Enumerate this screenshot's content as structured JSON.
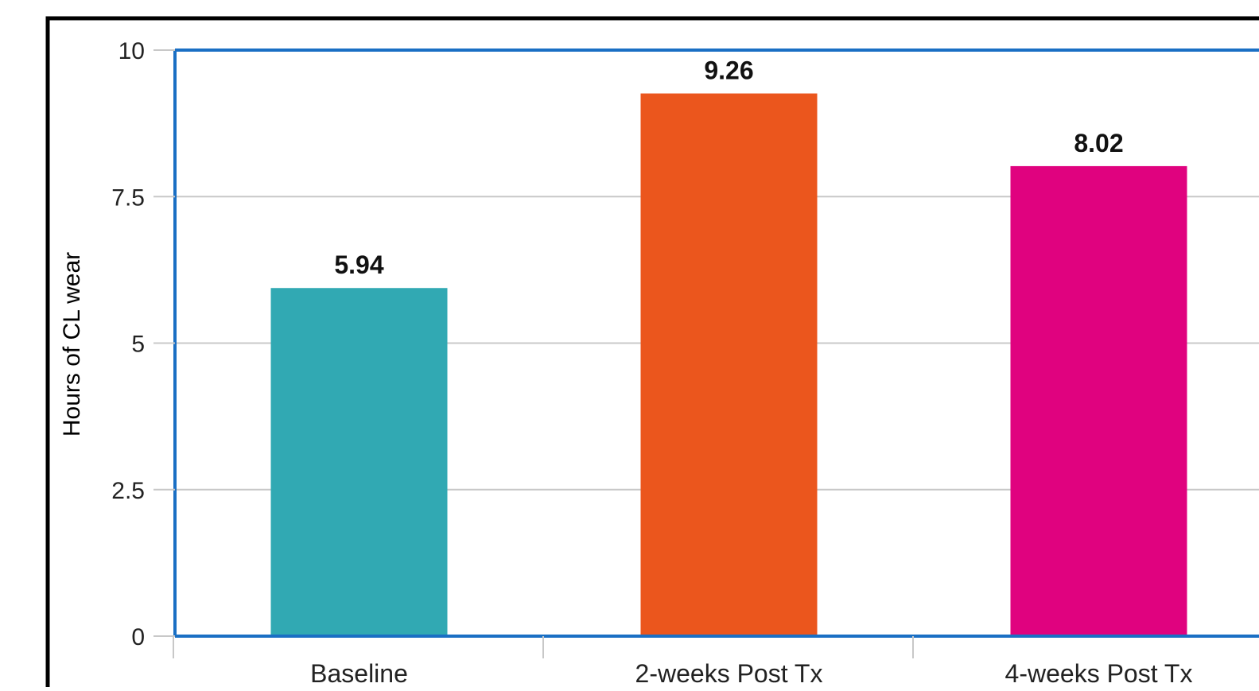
{
  "chart_data": {
    "type": "bar",
    "title": "",
    "xlabel": "",
    "ylabel": "Hours of CL wear",
    "categories": [
      "Baseline",
      "2-weeks Post Tx",
      "4-weeks Post Tx"
    ],
    "values": [
      5.94,
      9.26,
      8.02
    ],
    "data_labels": [
      "5.94",
      "9.26",
      "8.02"
    ],
    "ylim": [
      0,
      10
    ],
    "yticks": [
      0,
      2.5,
      5,
      7.5,
      10
    ],
    "ytick_labels": [
      "0",
      "2.5",
      "5",
      "7.5",
      "10"
    ],
    "grid": true,
    "legend": "none",
    "colors": [
      "#31a9b3",
      "#eb561d",
      "#e0027f"
    ],
    "axis_color": "#1a6fc4",
    "grid_color": "#c8c8c8"
  }
}
